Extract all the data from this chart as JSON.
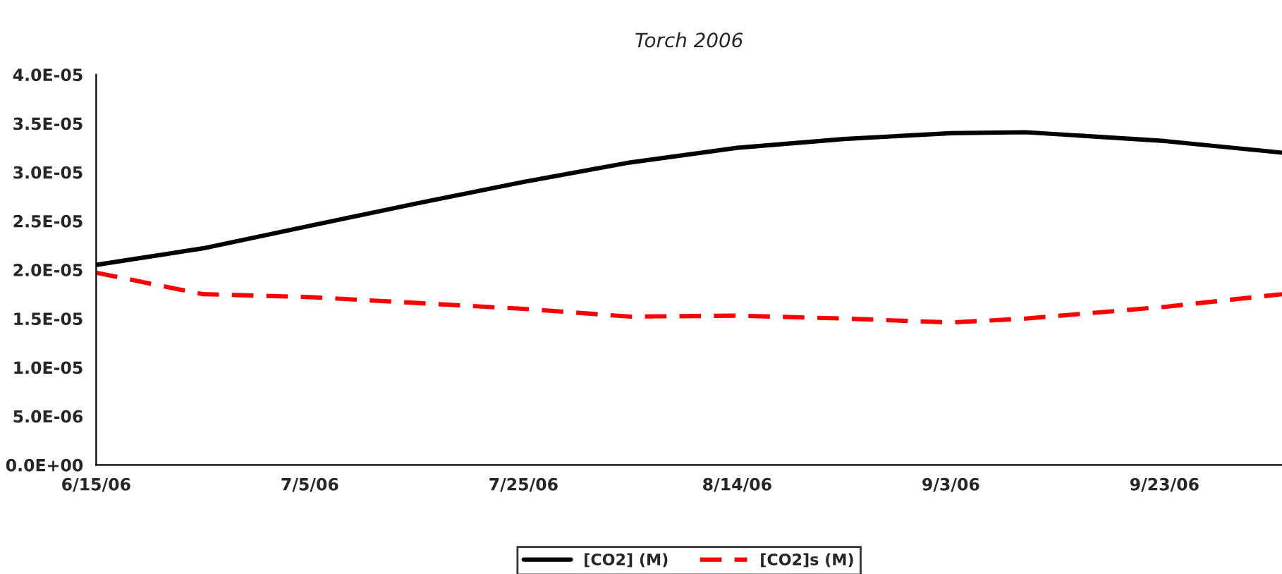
{
  "chart_data": {
    "type": "line",
    "title": "Torch 2006",
    "legend": "bottom",
    "grid": false,
    "marker": "none",
    "x": [
      "2006-06-15",
      "2006-06-25",
      "2006-07-05",
      "2006-07-15",
      "2006-07-25",
      "2006-08-04",
      "2006-08-14",
      "2006-08-24",
      "2006-09-03",
      "2006-09-10",
      "2006-09-23",
      "2006-10-04"
    ],
    "series": [
      {
        "name": "[CO2] (M)",
        "color": "#000000",
        "line_style": "solid",
        "values": [
          2.05e-05,
          2.22e-05,
          2.45e-05,
          2.68e-05,
          2.9e-05,
          3.1e-05,
          3.25e-05,
          3.34e-05,
          3.4e-05,
          3.41e-05,
          3.32e-05,
          3.2e-05
        ]
      },
      {
        "name": "[CO2]s (M)",
        "color": "#ff0000",
        "line_style": "dashed",
        "values": [
          1.97e-05,
          1.75e-05,
          1.72e-05,
          1.66e-05,
          1.6e-05,
          1.52e-05,
          1.53e-05,
          1.5e-05,
          1.46e-05,
          1.5e-05,
          1.62e-05,
          1.75e-05
        ]
      }
    ],
    "xlim": [
      "2006-06-15",
      "2006-10-04"
    ],
    "xticks": [
      {
        "value": "2006-06-15",
        "label": "6/15/06"
      },
      {
        "value": "2006-07-05",
        "label": "7/5/06"
      },
      {
        "value": "2006-07-25",
        "label": "7/25/06"
      },
      {
        "value": "2006-08-14",
        "label": "8/14/06"
      },
      {
        "value": "2006-09-03",
        "label": "9/3/06"
      },
      {
        "value": "2006-09-23",
        "label": "9/23/06"
      }
    ],
    "ylim": [
      0,
      4e-05
    ],
    "yticks": [
      {
        "value": 0,
        "label": "0.0E+00"
      },
      {
        "value": 5e-06,
        "label": "5.0E-06"
      },
      {
        "value": 1e-05,
        "label": "1.0E-05"
      },
      {
        "value": 1.5e-05,
        "label": "1.5E-05"
      },
      {
        "value": 2e-05,
        "label": "2.0E-05"
      },
      {
        "value": 2.5e-05,
        "label": "2.5E-05"
      },
      {
        "value": 3e-05,
        "label": "3.0E-05"
      },
      {
        "value": 3.5e-05,
        "label": "3.5E-05"
      },
      {
        "value": 4e-05,
        "label": "4.0E-05"
      }
    ]
  }
}
